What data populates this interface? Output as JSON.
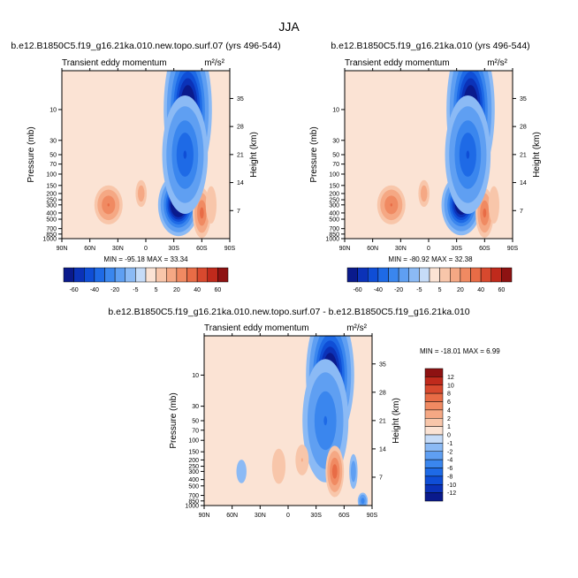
{
  "figure": {
    "title": "JJA"
  },
  "contour_levels_lg": [
    -60,
    -50,
    -40,
    -30,
    -20,
    -10,
    -5,
    0,
    5,
    10,
    20,
    30,
    40,
    50,
    60
  ],
  "contour_levels_diff": [
    -12,
    -10,
    -8,
    -6,
    -4,
    -2,
    -1,
    0,
    1,
    2,
    4,
    6,
    8,
    10,
    12
  ],
  "colors": {
    "neg": [
      "#0a1a8c",
      "#0b32b8",
      "#0f4ed6",
      "#1e6ae6",
      "#3a86ee",
      "#5f9ff2",
      "#8bbaf5",
      "#c6dcf8"
    ],
    "pos": [
      "#fbe3d4",
      "#f8c6aa",
      "#f5a884",
      "#f08a62",
      "#e86c46",
      "#d8492e",
      "#c02a1c",
      "#8e1212"
    ]
  },
  "chart_data": [
    {
      "id": "top-left",
      "type": "heatmap",
      "title": "b.e12.B1850C5.f19_g16.21ka.010.new.topo.surf.07 (yrs 496-544)",
      "subtitle": "Transient eddy momentum",
      "units": "m²/s²",
      "ylabel": "Pressure (mb)",
      "ylabel_right": "Height (km)",
      "xticks": [
        "90N",
        "60N",
        "30N",
        "0",
        "30S",
        "60S",
        "90S"
      ],
      "yticks": [
        "10",
        "30",
        "50",
        "70",
        "100",
        "150",
        "200",
        "250",
        "300",
        "400",
        "500",
        "700",
        "850",
        "1000"
      ],
      "yticks_right": [
        "35",
        "28",
        "21",
        "14",
        "7"
      ],
      "min": -95.18,
      "max": 33.34,
      "stats": "MIN = -95.18   MAX =  33.34",
      "colorbar": {
        "levels": [
          -60,
          -50,
          -40,
          -30,
          -20,
          -10,
          -5,
          0,
          5,
          10,
          20,
          30,
          40,
          50,
          60
        ],
        "labels": [
          "-60",
          "-40",
          "-20",
          "-5",
          "5",
          "20",
          "40",
          "60"
        ]
      },
      "features": [
        {
          "lat": 40,
          "p": 300,
          "value": 30,
          "wlat": 8,
          "wlogp": 0.16
        },
        {
          "lat": 5,
          "p": 200,
          "value": 15,
          "wlat": 4,
          "wlogp": 0.14
        },
        {
          "lat": -35,
          "p": 300,
          "value": -95,
          "wlat": 9,
          "wlogp": 0.2
        },
        {
          "lat": -60,
          "p": 400,
          "value": 33,
          "wlat": 5,
          "wlogp": 0.2
        },
        {
          "lat": -45,
          "p": 10,
          "value": -80,
          "wlat": 11,
          "wlogp": 0.5
        },
        {
          "lat": -42,
          "p": 50,
          "value": -40,
          "wlat": 12,
          "wlogp": 0.45
        },
        {
          "lat": -70,
          "p": 300,
          "value": 8,
          "wlat": 6,
          "wlogp": 0.3
        }
      ]
    },
    {
      "id": "top-right",
      "type": "heatmap",
      "title": "b.e12.B1850C5.f19_g16.21ka.010 (yrs 496-544)",
      "subtitle": "Transient eddy momentum",
      "units": "m²/s²",
      "ylabel": "Pressure (mb)",
      "ylabel_right": "Height (km)",
      "xticks": [
        "90N",
        "60N",
        "30N",
        "0",
        "30S",
        "60S",
        "90S"
      ],
      "yticks": [
        "10",
        "30",
        "50",
        "70",
        "100",
        "150",
        "200",
        "250",
        "300",
        "400",
        "500",
        "700",
        "850",
        "1000"
      ],
      "yticks_right": [
        "35",
        "28",
        "21",
        "14",
        "7"
      ],
      "min": -80.92,
      "max": 32.38,
      "stats": "MIN = -80.92   MAX =  32.38",
      "colorbar": {
        "levels": [
          -60,
          -50,
          -40,
          -30,
          -20,
          -10,
          -5,
          0,
          5,
          10,
          20,
          30,
          40,
          50,
          60
        ],
        "labels": [
          "-60",
          "-40",
          "-20",
          "-5",
          "5",
          "20",
          "40",
          "60"
        ]
      },
      "features": [
        {
          "lat": 40,
          "p": 300,
          "value": 30,
          "wlat": 8,
          "wlogp": 0.16
        },
        {
          "lat": 5,
          "p": 200,
          "value": 15,
          "wlat": 4,
          "wlogp": 0.14
        },
        {
          "lat": -35,
          "p": 300,
          "value": -80,
          "wlat": 9,
          "wlogp": 0.2
        },
        {
          "lat": -60,
          "p": 400,
          "value": 32,
          "wlat": 5,
          "wlogp": 0.2
        },
        {
          "lat": -45,
          "p": 10,
          "value": -80,
          "wlat": 11,
          "wlogp": 0.5
        },
        {
          "lat": -42,
          "p": 50,
          "value": -40,
          "wlat": 12,
          "wlogp": 0.45
        },
        {
          "lat": -70,
          "p": 300,
          "value": 8,
          "wlat": 6,
          "wlogp": 0.3
        }
      ]
    },
    {
      "id": "bottom",
      "type": "heatmap",
      "title": "b.e12.B1850C5.f19_g16.21ka.010.new.topo.surf.07 - b.e12.B1850C5.f19_g16.21ka.010",
      "subtitle": "Transient eddy momentum",
      "units": "m²/s²",
      "ylabel": "Pressure (mb)",
      "ylabel_right": "Height (km)",
      "xticks": [
        "90N",
        "60N",
        "30N",
        "0",
        "30S",
        "60S",
        "90S"
      ],
      "yticks": [
        "10",
        "30",
        "50",
        "70",
        "100",
        "150",
        "200",
        "250",
        "300",
        "400",
        "500",
        "700",
        "850",
        "1000"
      ],
      "yticks_right": [
        "35",
        "28",
        "21",
        "14",
        "7"
      ],
      "min": -18.01,
      "max": 6.99,
      "stats": "MIN = -18.01   MAX =   6.99",
      "colorbar": {
        "levels": [
          -12,
          -10,
          -8,
          -6,
          -4,
          -2,
          -1,
          0,
          1,
          2,
          4,
          6,
          8,
          10,
          12
        ],
        "labels": [
          "12",
          "10",
          "8",
          "6",
          "4",
          "2",
          "1",
          "0",
          "-1",
          "-2",
          "-4",
          "-6",
          "-8",
          "-10",
          "-12"
        ]
      },
      "features": [
        {
          "lat": -45,
          "p": 10,
          "value": -16,
          "wlat": 11,
          "wlogp": 0.45
        },
        {
          "lat": -40,
          "p": 50,
          "value": -6,
          "wlat": 13,
          "wlogp": 0.5
        },
        {
          "lat": -50,
          "p": 300,
          "value": 7,
          "wlat": 5,
          "wlogp": 0.2
        },
        {
          "lat": -70,
          "p": 300,
          "value": -3,
          "wlat": 3,
          "wlogp": 0.18
        },
        {
          "lat": -15,
          "p": 200,
          "value": 2,
          "wlat": 6,
          "wlogp": 0.2
        },
        {
          "lat": 10,
          "p": 250,
          "value": 1.5,
          "wlat": 8,
          "wlogp": 0.3
        },
        {
          "lat": 50,
          "p": 300,
          "value": -1.5,
          "wlat": 6,
          "wlogp": 0.2
        },
        {
          "lat": -80,
          "p": 850,
          "value": -5,
          "wlat": 3,
          "wlogp": 0.07
        }
      ]
    }
  ]
}
